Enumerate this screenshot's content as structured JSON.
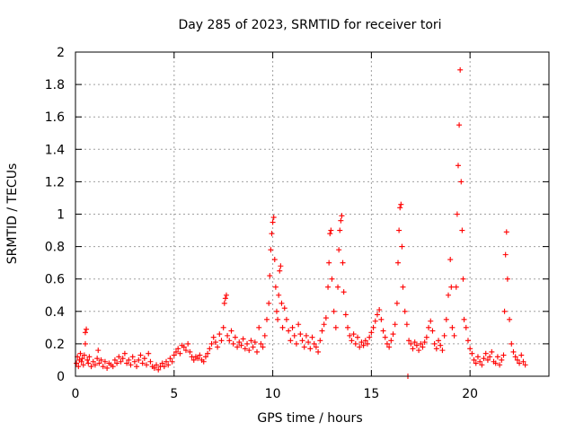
{
  "chart_data": {
    "type": "scatter",
    "title": "Day 285 of 2023, SRMTID for receiver tori",
    "xlabel": "GPS time / hours",
    "ylabel": "SRMTID / TECUs",
    "xlim": [
      0,
      24
    ],
    "ylim": [
      0,
      2
    ],
    "x_ticks": [
      0,
      5,
      10,
      15,
      20
    ],
    "x_tick_labels": [
      "0",
      "5",
      "10",
      "15",
      "20"
    ],
    "y_ticks": [
      0,
      0.2,
      0.4,
      0.6,
      0.8,
      1,
      1.2,
      1.4,
      1.6,
      1.8,
      2
    ],
    "y_tick_labels": [
      "0",
      "0.2",
      "0.4",
      "0.6",
      "0.8",
      "1",
      "1.2",
      "1.4",
      "1.6",
      "1.8",
      "2"
    ],
    "grid": true,
    "marker": "plus",
    "color": "#ff0000",
    "series": [
      {
        "name": "SRMTID",
        "points": [
          [
            0.05,
            0.08
          ],
          [
            0.1,
            0.12
          ],
          [
            0.15,
            0.06
          ],
          [
            0.2,
            0.1
          ],
          [
            0.25,
            0.14
          ],
          [
            0.3,
            0.09
          ],
          [
            0.35,
            0.11
          ],
          [
            0.4,
            0.07
          ],
          [
            0.45,
            0.13
          ],
          [
            0.5,
            0.2
          ],
          [
            0.5,
            0.27
          ],
          [
            0.55,
            0.29
          ],
          [
            0.6,
            0.1
          ],
          [
            0.65,
            0.08
          ],
          [
            0.7,
            0.12
          ],
          [
            0.8,
            0.06
          ],
          [
            0.9,
            0.09
          ],
          [
            1.0,
            0.07
          ],
          [
            1.1,
            0.11
          ],
          [
            1.15,
            0.16
          ],
          [
            1.2,
            0.08
          ],
          [
            1.3,
            0.1
          ],
          [
            1.4,
            0.06
          ],
          [
            1.5,
            0.09
          ],
          [
            1.6,
            0.05
          ],
          [
            1.7,
            0.08
          ],
          [
            1.8,
            0.07
          ],
          [
            1.9,
            0.06
          ],
          [
            2.0,
            0.1
          ],
          [
            2.1,
            0.08
          ],
          [
            2.2,
            0.12
          ],
          [
            2.3,
            0.09
          ],
          [
            2.4,
            0.11
          ],
          [
            2.5,
            0.14
          ],
          [
            2.6,
            0.08
          ],
          [
            2.7,
            0.1
          ],
          [
            2.8,
            0.07
          ],
          [
            2.9,
            0.12
          ],
          [
            3.0,
            0.09
          ],
          [
            3.1,
            0.06
          ],
          [
            3.2,
            0.1
          ],
          [
            3.3,
            0.13
          ],
          [
            3.4,
            0.08
          ],
          [
            3.5,
            0.11
          ],
          [
            3.6,
            0.07
          ],
          [
            3.7,
            0.14
          ],
          [
            3.8,
            0.09
          ],
          [
            3.9,
            0.06
          ],
          [
            4.0,
            0.05
          ],
          [
            4.1,
            0.07
          ],
          [
            4.2,
            0.04
          ],
          [
            4.3,
            0.06
          ],
          [
            4.4,
            0.08
          ],
          [
            4.5,
            0.06
          ],
          [
            4.6,
            0.09
          ],
          [
            4.7,
            0.07
          ],
          [
            4.8,
            0.11
          ],
          [
            4.9,
            0.09
          ],
          [
            5.0,
            0.13
          ],
          [
            5.1,
            0.15
          ],
          [
            5.2,
            0.17
          ],
          [
            5.3,
            0.14
          ],
          [
            5.4,
            0.19
          ],
          [
            5.5,
            0.18
          ],
          [
            5.6,
            0.16
          ],
          [
            5.7,
            0.2
          ],
          [
            5.8,
            0.15
          ],
          [
            5.9,
            0.12
          ],
          [
            6.0,
            0.1
          ],
          [
            6.1,
            0.12
          ],
          [
            6.2,
            0.11
          ],
          [
            6.3,
            0.13
          ],
          [
            6.4,
            0.1
          ],
          [
            6.5,
            0.09
          ],
          [
            6.6,
            0.12
          ],
          [
            6.7,
            0.14
          ],
          [
            6.8,
            0.17
          ],
          [
            6.9,
            0.2
          ],
          [
            7.0,
            0.24
          ],
          [
            7.1,
            0.21
          ],
          [
            7.2,
            0.18
          ],
          [
            7.3,
            0.26
          ],
          [
            7.4,
            0.22
          ],
          [
            7.5,
            0.3
          ],
          [
            7.55,
            0.45
          ],
          [
            7.6,
            0.48
          ],
          [
            7.65,
            0.5
          ],
          [
            7.7,
            0.25
          ],
          [
            7.8,
            0.22
          ],
          [
            7.9,
            0.28
          ],
          [
            8.0,
            0.2
          ],
          [
            8.1,
            0.24
          ],
          [
            8.2,
            0.18
          ],
          [
            8.3,
            0.21
          ],
          [
            8.4,
            0.19
          ],
          [
            8.5,
            0.23
          ],
          [
            8.6,
            0.17
          ],
          [
            8.7,
            0.2
          ],
          [
            8.8,
            0.16
          ],
          [
            8.9,
            0.22
          ],
          [
            9.0,
            0.18
          ],
          [
            9.1,
            0.21
          ],
          [
            9.2,
            0.15
          ],
          [
            9.3,
            0.3
          ],
          [
            9.4,
            0.2
          ],
          [
            9.5,
            0.18
          ],
          [
            9.6,
            0.25
          ],
          [
            9.7,
            0.35
          ],
          [
            9.8,
            0.45
          ],
          [
            9.85,
            0.62
          ],
          [
            9.9,
            0.78
          ],
          [
            9.95,
            0.88
          ],
          [
            10.0,
            0.95
          ],
          [
            10.05,
            0.98
          ],
          [
            10.1,
            0.72
          ],
          [
            10.15,
            0.55
          ],
          [
            10.2,
            0.4
          ],
          [
            10.25,
            0.35
          ],
          [
            10.3,
            0.5
          ],
          [
            10.35,
            0.65
          ],
          [
            10.4,
            0.68
          ],
          [
            10.45,
            0.45
          ],
          [
            10.5,
            0.3
          ],
          [
            10.6,
            0.42
          ],
          [
            10.7,
            0.35
          ],
          [
            10.8,
            0.28
          ],
          [
            10.9,
            0.22
          ],
          [
            11.0,
            0.3
          ],
          [
            11.1,
            0.25
          ],
          [
            11.2,
            0.2
          ],
          [
            11.3,
            0.32
          ],
          [
            11.4,
            0.26
          ],
          [
            11.5,
            0.22
          ],
          [
            11.6,
            0.18
          ],
          [
            11.7,
            0.25
          ],
          [
            11.8,
            0.21
          ],
          [
            11.9,
            0.17
          ],
          [
            12.0,
            0.24
          ],
          [
            12.1,
            0.2
          ],
          [
            12.2,
            0.18
          ],
          [
            12.3,
            0.15
          ],
          [
            12.4,
            0.22
          ],
          [
            12.5,
            0.28
          ],
          [
            12.6,
            0.32
          ],
          [
            12.7,
            0.36
          ],
          [
            12.8,
            0.55
          ],
          [
            12.85,
            0.7
          ],
          [
            12.9,
            0.88
          ],
          [
            12.95,
            0.9
          ],
          [
            13.0,
            0.6
          ],
          [
            13.1,
            0.4
          ],
          [
            13.2,
            0.3
          ],
          [
            13.3,
            0.55
          ],
          [
            13.35,
            0.78
          ],
          [
            13.4,
            0.9
          ],
          [
            13.45,
            0.96
          ],
          [
            13.5,
            0.99
          ],
          [
            13.55,
            0.7
          ],
          [
            13.6,
            0.52
          ],
          [
            13.7,
            0.38
          ],
          [
            13.8,
            0.3
          ],
          [
            13.9,
            0.25
          ],
          [
            14.0,
            0.22
          ],
          [
            14.1,
            0.26
          ],
          [
            14.2,
            0.2
          ],
          [
            14.3,
            0.24
          ],
          [
            14.4,
            0.18
          ],
          [
            14.5,
            0.21
          ],
          [
            14.6,
            0.19
          ],
          [
            14.7,
            0.22
          ],
          [
            14.8,
            0.2
          ],
          [
            14.9,
            0.24
          ],
          [
            15.0,
            0.27
          ],
          [
            15.1,
            0.3
          ],
          [
            15.2,
            0.34
          ],
          [
            15.3,
            0.38
          ],
          [
            15.4,
            0.41
          ],
          [
            15.5,
            0.35
          ],
          [
            15.6,
            0.28
          ],
          [
            15.7,
            0.24
          ],
          [
            15.8,
            0.2
          ],
          [
            15.9,
            0.18
          ],
          [
            16.0,
            0.22
          ],
          [
            16.1,
            0.26
          ],
          [
            16.2,
            0.32
          ],
          [
            16.3,
            0.45
          ],
          [
            16.35,
            0.7
          ],
          [
            16.4,
            0.9
          ],
          [
            16.45,
            1.04
          ],
          [
            16.5,
            1.06
          ],
          [
            16.55,
            0.8
          ],
          [
            16.6,
            0.55
          ],
          [
            16.7,
            0.4
          ],
          [
            16.8,
            0.32
          ],
          [
            16.85,
            0.0
          ],
          [
            16.9,
            0.22
          ],
          [
            17.0,
            0.2
          ],
          [
            17.1,
            0.17
          ],
          [
            17.2,
            0.21
          ],
          [
            17.3,
            0.19
          ],
          [
            17.4,
            0.16
          ],
          [
            17.5,
            0.2
          ],
          [
            17.6,
            0.18
          ],
          [
            17.7,
            0.21
          ],
          [
            17.8,
            0.24
          ],
          [
            17.9,
            0.3
          ],
          [
            18.0,
            0.34
          ],
          [
            18.1,
            0.28
          ],
          [
            18.2,
            0.2
          ],
          [
            18.3,
            0.17
          ],
          [
            18.4,
            0.22
          ],
          [
            18.5,
            0.19
          ],
          [
            18.6,
            0.16
          ],
          [
            18.7,
            0.25
          ],
          [
            18.8,
            0.35
          ],
          [
            18.9,
            0.5
          ],
          [
            19.0,
            0.72
          ],
          [
            19.05,
            0.55
          ],
          [
            19.1,
            0.3
          ],
          [
            19.2,
            0.25
          ],
          [
            19.3,
            0.55
          ],
          [
            19.35,
            1.0
          ],
          [
            19.4,
            1.3
          ],
          [
            19.45,
            1.55
          ],
          [
            19.5,
            1.89
          ],
          [
            19.55,
            1.2
          ],
          [
            19.6,
            0.9
          ],
          [
            19.65,
            0.6
          ],
          [
            19.7,
            0.35
          ],
          [
            19.8,
            0.3
          ],
          [
            19.9,
            0.22
          ],
          [
            20.0,
            0.17
          ],
          [
            20.1,
            0.14
          ],
          [
            20.2,
            0.1
          ],
          [
            20.3,
            0.08
          ],
          [
            20.4,
            0.12
          ],
          [
            20.5,
            0.09
          ],
          [
            20.6,
            0.07
          ],
          [
            20.7,
            0.11
          ],
          [
            20.8,
            0.14
          ],
          [
            20.9,
            0.1
          ],
          [
            21.0,
            0.12
          ],
          [
            21.1,
            0.15
          ],
          [
            21.2,
            0.09
          ],
          [
            21.3,
            0.08
          ],
          [
            21.4,
            0.12
          ],
          [
            21.5,
            0.07
          ],
          [
            21.6,
            0.1
          ],
          [
            21.7,
            0.13
          ],
          [
            21.75,
            0.4
          ],
          [
            21.8,
            0.75
          ],
          [
            21.85,
            0.89
          ],
          [
            21.9,
            0.6
          ],
          [
            22.0,
            0.35
          ],
          [
            22.1,
            0.2
          ],
          [
            22.2,
            0.15
          ],
          [
            22.3,
            0.12
          ],
          [
            22.4,
            0.1
          ],
          [
            22.5,
            0.08
          ],
          [
            22.6,
            0.13
          ],
          [
            22.7,
            0.09
          ],
          [
            22.8,
            0.07
          ]
        ]
      }
    ]
  }
}
